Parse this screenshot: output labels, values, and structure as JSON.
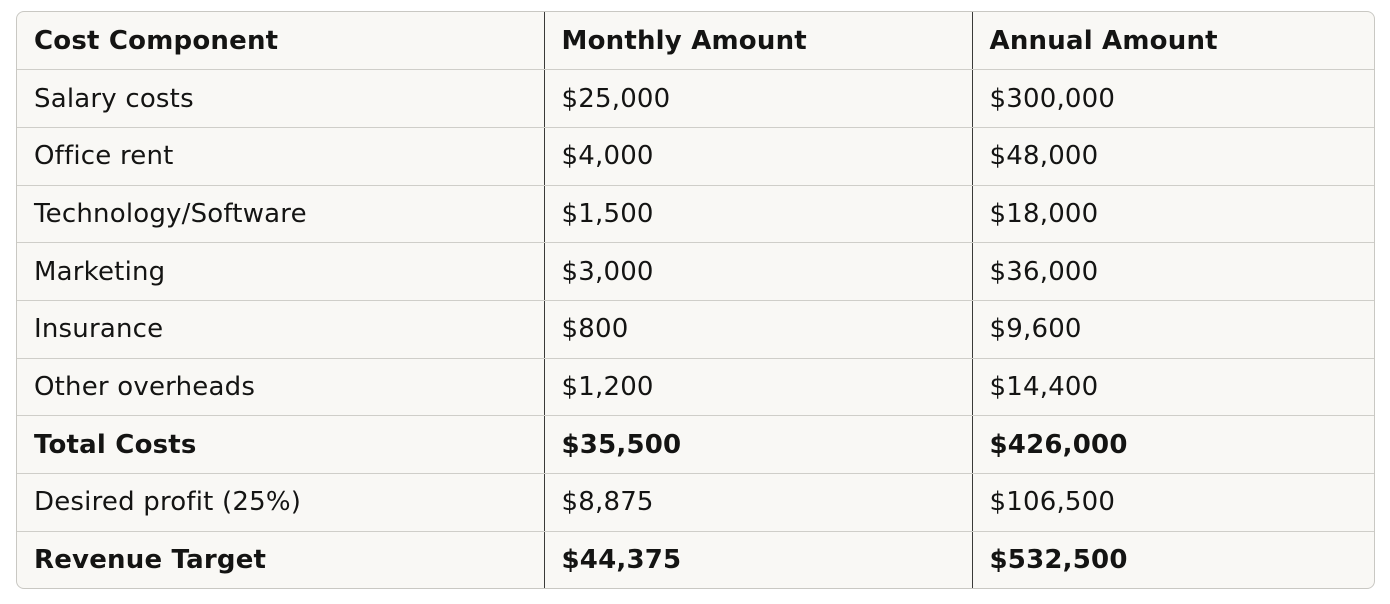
{
  "table": {
    "headers": [
      "Cost Component",
      "Monthly Amount",
      "Annual Amount"
    ],
    "rows": [
      {
        "cells": [
          "Salary costs",
          "$25,000",
          "$300,000"
        ],
        "bold": false
      },
      {
        "cells": [
          "Office rent",
          "$4,000",
          "$48,000"
        ],
        "bold": false
      },
      {
        "cells": [
          "Technology/Software",
          "$1,500",
          "$18,000"
        ],
        "bold": false
      },
      {
        "cells": [
          "Marketing",
          "$3,000",
          "$36,000"
        ],
        "bold": false
      },
      {
        "cells": [
          "Insurance",
          "$800",
          "$9,600"
        ],
        "bold": false
      },
      {
        "cells": [
          "Other overheads",
          "$1,200",
          "$14,400"
        ],
        "bold": false
      },
      {
        "cells": [
          "Total Costs",
          "$35,500",
          "$426,000"
        ],
        "bold": true
      },
      {
        "cells": [
          "Desired profit (25%)",
          "$8,875",
          "$106,500"
        ],
        "bold": false
      },
      {
        "cells": [
          "Revenue Target",
          "$44,375",
          "$532,500"
        ],
        "bold": true
      }
    ]
  }
}
